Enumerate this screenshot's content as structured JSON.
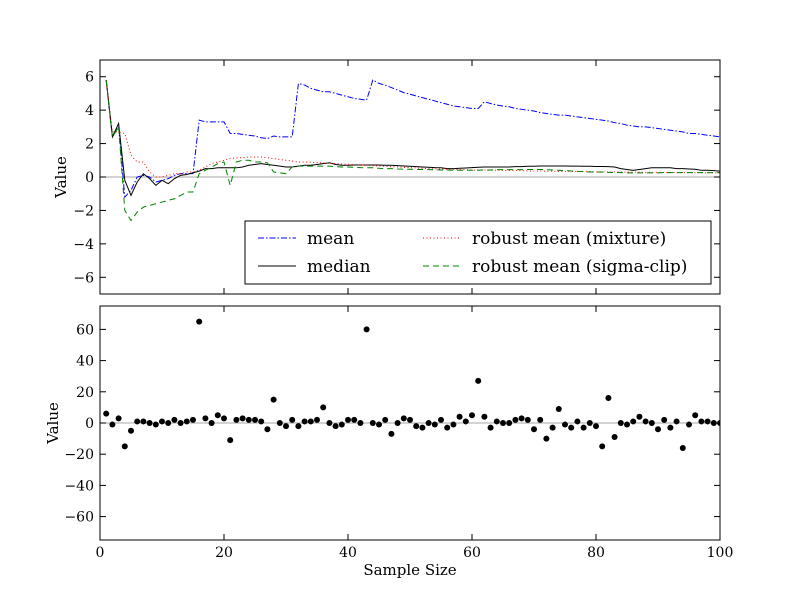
{
  "chart_data": [
    {
      "type": "line",
      "ylabel": "Value",
      "xlim": [
        0,
        100
      ],
      "ylim": [
        -7,
        7
      ],
      "yticks": [
        -6,
        -4,
        -2,
        0,
        2,
        4,
        6
      ],
      "ytick_labels": [
        "−6",
        "−4",
        "−2",
        "0",
        "2",
        "4",
        "6"
      ],
      "hline": 0,
      "legend": {
        "placement": "lower-right",
        "ncol": 2,
        "entries": [
          "mean",
          "median",
          "robust mean (mixture)",
          "robust mean (sigma-clip)"
        ]
      },
      "x": [
        1,
        2,
        3,
        4,
        5,
        6,
        7,
        8,
        9,
        10,
        11,
        12,
        13,
        14,
        15,
        16,
        17,
        18,
        19,
        20,
        21,
        22,
        23,
        24,
        25,
        26,
        27,
        28,
        29,
        30,
        31,
        32,
        33,
        34,
        35,
        36,
        37,
        38,
        39,
        40,
        41,
        42,
        43,
        44,
        45,
        46,
        47,
        48,
        49,
        50,
        51,
        52,
        53,
        54,
        55,
        56,
        57,
        58,
        59,
        60,
        61,
        62,
        63,
        64,
        65,
        66,
        67,
        68,
        69,
        70,
        71,
        72,
        73,
        74,
        75,
        76,
        77,
        78,
        79,
        80,
        81,
        82,
        83,
        84,
        85,
        86,
        87,
        88,
        89,
        90,
        91,
        92,
        93,
        94,
        95,
        96,
        97,
        98,
        99,
        100
      ],
      "series": [
        {
          "name": "mean",
          "color": "#0000ff",
          "dash": "dashdot",
          "values": [
            5.8,
            2.4,
            3.0,
            -1.2,
            -0.8,
            0.0,
            0.1,
            0.0,
            -0.3,
            -0.2,
            -0.1,
            0.1,
            0.2,
            0.2,
            0.2,
            3.4,
            3.3,
            3.3,
            3.3,
            3.3,
            2.6,
            2.6,
            2.55,
            2.5,
            2.45,
            2.35,
            2.3,
            2.45,
            2.4,
            2.4,
            2.4,
            5.6,
            5.5,
            5.3,
            5.2,
            5.1,
            5.1,
            5.0,
            4.9,
            4.8,
            4.7,
            4.65,
            4.6,
            5.8,
            5.6,
            5.5,
            5.35,
            5.2,
            5.05,
            4.95,
            4.85,
            4.75,
            4.65,
            4.55,
            4.45,
            4.35,
            4.25,
            4.2,
            4.15,
            4.1,
            4.1,
            4.5,
            4.4,
            4.3,
            4.25,
            4.2,
            4.1,
            4.05,
            4.0,
            3.95,
            3.85,
            3.8,
            3.75,
            3.7,
            3.7,
            3.65,
            3.6,
            3.55,
            3.5,
            3.45,
            3.4,
            3.35,
            3.25,
            3.2,
            3.1,
            3.05,
            3.0,
            3.0,
            2.95,
            2.9,
            2.85,
            2.8,
            2.75,
            2.7,
            2.6,
            2.6,
            2.55,
            2.5,
            2.45,
            2.4
          ]
        },
        {
          "name": "median",
          "color": "#000000",
          "dash": "solid",
          "values": [
            5.8,
            2.4,
            3.2,
            -0.2,
            -1.1,
            -0.3,
            0.2,
            -0.1,
            -0.5,
            -0.2,
            -0.4,
            -0.1,
            0.1,
            0.15,
            0.25,
            0.35,
            0.5,
            0.5,
            0.55,
            0.55,
            0.55,
            0.55,
            0.6,
            0.7,
            0.75,
            0.8,
            0.75,
            0.7,
            0.65,
            0.6,
            0.6,
            0.65,
            0.7,
            0.7,
            0.75,
            0.8,
            0.85,
            0.75,
            0.7,
            0.7,
            0.72,
            0.72,
            0.72,
            0.72,
            0.72,
            0.7,
            0.7,
            0.68,
            0.66,
            0.64,
            0.62,
            0.6,
            0.58,
            0.56,
            0.55,
            0.5,
            0.5,
            0.52,
            0.54,
            0.56,
            0.58,
            0.6,
            0.6,
            0.6,
            0.6,
            0.6,
            0.62,
            0.62,
            0.64,
            0.64,
            0.66,
            0.66,
            0.66,
            0.66,
            0.66,
            0.65,
            0.65,
            0.64,
            0.64,
            0.63,
            0.63,
            0.62,
            0.6,
            0.5,
            0.45,
            0.4,
            0.45,
            0.5,
            0.55,
            0.55,
            0.55,
            0.55,
            0.5,
            0.5,
            0.48,
            0.46,
            0.4,
            0.4,
            0.38,
            0.35
          ]
        },
        {
          "name": "robust mean (mixture)",
          "color": "#ff0000",
          "dash": "dotted",
          "values": [
            5.8,
            2.7,
            2.7,
            2.6,
            1.3,
            0.9,
            0.9,
            0.3,
            0.0,
            0.0,
            0.1,
            0.2,
            0.2,
            0.3,
            0.3,
            0.4,
            0.6,
            0.8,
            0.9,
            1.0,
            1.1,
            1.15,
            1.15,
            1.2,
            1.2,
            1.2,
            1.15,
            1.1,
            1.05,
            1.0,
            0.95,
            0.9,
            0.9,
            0.88,
            0.86,
            0.84,
            0.82,
            0.8,
            0.78,
            0.76,
            0.74,
            0.72,
            0.7,
            0.68,
            0.66,
            0.64,
            0.62,
            0.6,
            0.58,
            0.56,
            0.54,
            0.52,
            0.5,
            0.48,
            0.48,
            0.46,
            0.46,
            0.44,
            0.44,
            0.42,
            0.42,
            0.42,
            0.4,
            0.4,
            0.4,
            0.38,
            0.38,
            0.38,
            0.36,
            0.36,
            0.36,
            0.35,
            0.35,
            0.34,
            0.34,
            0.33,
            0.33,
            0.32,
            0.32,
            0.31,
            0.31,
            0.3,
            0.3,
            0.3,
            0.29,
            0.29,
            0.29,
            0.28,
            0.28,
            0.28,
            0.27,
            0.27,
            0.27,
            0.26,
            0.26,
            0.26,
            0.25,
            0.25,
            0.25,
            0.25
          ]
        },
        {
          "name": "robust mean (sigma-clip)",
          "color": "#008000",
          "dash": "dashed",
          "values": [
            5.8,
            2.4,
            3.0,
            -2.0,
            -2.6,
            -2.1,
            -1.8,
            -1.7,
            -1.6,
            -1.5,
            -1.4,
            -1.3,
            -1.1,
            -0.9,
            -0.9,
            0.2,
            0.4,
            0.6,
            0.8,
            0.9,
            -0.5,
            0.9,
            1.0,
            1.0,
            0.9,
            0.9,
            0.85,
            0.3,
            0.25,
            0.2,
            0.6,
            0.65,
            0.65,
            0.65,
            0.65,
            0.65,
            0.65,
            0.62,
            0.6,
            0.6,
            0.58,
            0.56,
            0.55,
            0.55,
            0.52,
            0.5,
            0.5,
            0.48,
            0.47,
            0.46,
            0.45,
            0.45,
            0.44,
            0.43,
            0.42,
            0.42,
            0.4,
            0.4,
            0.4,
            0.4,
            0.4,
            0.42,
            0.42,
            0.44,
            0.44,
            0.44,
            0.44,
            0.44,
            0.45,
            0.45,
            0.45,
            0.44,
            0.42,
            0.4,
            0.38,
            0.36,
            0.34,
            0.32,
            0.3,
            0.3,
            0.29,
            0.28,
            0.27,
            0.26,
            0.25,
            0.25,
            0.25,
            0.25,
            0.25,
            0.25,
            0.26,
            0.26,
            0.26,
            0.26,
            0.26,
            0.26,
            0.26,
            0.26,
            0.26,
            0.26
          ]
        }
      ]
    },
    {
      "type": "scatter",
      "ylabel": "Value",
      "xlabel": "Sample Size",
      "xlim": [
        0,
        100
      ],
      "ylim": [
        -75,
        75
      ],
      "xticks": [
        0,
        20,
        40,
        60,
        80,
        100
      ],
      "xtick_labels": [
        "0",
        "20",
        "40",
        "60",
        "80",
        "100"
      ],
      "yticks": [
        -60,
        -40,
        -20,
        0,
        20,
        40,
        60
      ],
      "ytick_labels": [
        "−60",
        "−40",
        "−20",
        "0",
        "20",
        "40",
        "60"
      ],
      "hline": 0,
      "marker_color": "#000000",
      "x": [
        1,
        2,
        3,
        4,
        5,
        6,
        7,
        8,
        9,
        10,
        11,
        12,
        13,
        14,
        15,
        16,
        17,
        18,
        19,
        20,
        21,
        22,
        23,
        24,
        25,
        26,
        27,
        28,
        29,
        30,
        31,
        32,
        33,
        34,
        35,
        36,
        37,
        38,
        39,
        40,
        41,
        42,
        43,
        44,
        45,
        46,
        47,
        48,
        49,
        50,
        51,
        52,
        53,
        54,
        55,
        56,
        57,
        58,
        59,
        60,
        61,
        62,
        63,
        64,
        65,
        66,
        67,
        68,
        69,
        70,
        71,
        72,
        73,
        74,
        75,
        76,
        77,
        78,
        79,
        80,
        81,
        82,
        83,
        84,
        85,
        86,
        87,
        88,
        89,
        90,
        91,
        92,
        93,
        94,
        95,
        96,
        97,
        98,
        99,
        100
      ],
      "y": [
        6,
        -1,
        3,
        -15,
        -5,
        1,
        1,
        0,
        -1,
        1,
        0,
        2,
        0,
        1,
        2,
        65,
        3,
        0,
        5,
        3,
        -11,
        2,
        3,
        2,
        2,
        1,
        -4,
        15,
        0,
        -2,
        2,
        -2,
        1,
        1,
        2,
        10,
        0,
        -2,
        -1,
        2,
        2,
        0,
        60,
        0,
        -1,
        2,
        -7,
        0,
        3,
        2,
        -2,
        -3,
        0,
        -1,
        2,
        -3,
        -1,
        4,
        1,
        5,
        27,
        4,
        -3,
        1,
        0,
        0,
        2,
        3,
        2,
        -4,
        2,
        -10,
        -3,
        9,
        -1,
        -3,
        1,
        -3,
        0,
        -2,
        -15,
        16,
        -9,
        0,
        -1,
        1,
        4,
        1,
        0,
        -4,
        2,
        -3,
        1,
        -16,
        -1,
        5,
        1,
        1,
        0,
        0
      ]
    }
  ]
}
